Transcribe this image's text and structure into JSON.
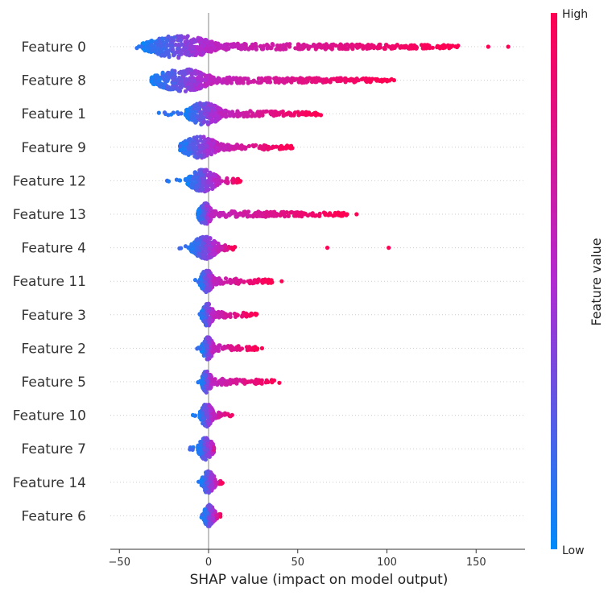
{
  "chart_data": {
    "type": "scatter",
    "subtype": "shap-beeswarm",
    "xlabel": "SHAP value (impact on model output)",
    "xlim": [
      -55,
      178
    ],
    "x_ticks": [
      -50,
      0,
      50,
      100,
      150
    ],
    "x_tick_labels": [
      "−50",
      "0",
      "50",
      "100",
      "150"
    ],
    "zero_line": 0,
    "colorbar": {
      "title": "Feature value",
      "high_label": "High",
      "low_label": "Low",
      "low_color": "#008bfb",
      "mid_color": "#b22ad1",
      "high_color": "#ff0052"
    },
    "features": [
      {
        "name": "Feature 0",
        "min": -44,
        "max": 168,
        "dense_min": -37,
        "dense_max": 5,
        "tail_end": 140,
        "low_side": "left"
      },
      {
        "name": "Feature 8",
        "min": -32,
        "max": 104,
        "dense_min": -32,
        "dense_max": 3,
        "tail_end": 103,
        "low_side": "left"
      },
      {
        "name": "Feature 1",
        "min": -28,
        "max": 63,
        "dense_min": -13,
        "dense_max": 8,
        "tail_end": 63,
        "low_side": "left"
      },
      {
        "name": "Feature 9",
        "min": -16,
        "max": 47,
        "dense_min": -16,
        "dense_max": 6,
        "tail_end": 47,
        "low_side": "left"
      },
      {
        "name": "Feature 12",
        "min": -26,
        "max": 18,
        "dense_min": -12,
        "dense_max": 6,
        "tail_end": 18,
        "low_side": "left"
      },
      {
        "name": "Feature 13",
        "min": -6,
        "max": 83,
        "dense_min": -6,
        "dense_max": 2,
        "tail_end": 78,
        "low_side": "left"
      },
      {
        "name": "Feature 4",
        "min": -18,
        "max": 101,
        "dense_min": -10,
        "dense_max": 6,
        "tail_end": 15,
        "low_side": "left"
      },
      {
        "name": "Feature 11",
        "min": -8,
        "max": 41,
        "dense_min": -5,
        "dense_max": 3,
        "tail_end": 36,
        "low_side": "left"
      },
      {
        "name": "Feature 3",
        "min": -5,
        "max": 27,
        "dense_min": -4,
        "dense_max": 3,
        "tail_end": 27,
        "low_side": "left"
      },
      {
        "name": "Feature 2",
        "min": -10,
        "max": 30,
        "dense_min": -4,
        "dense_max": 3,
        "tail_end": 28,
        "low_side": "left"
      },
      {
        "name": "Feature 5",
        "min": -6,
        "max": 40,
        "dense_min": -4,
        "dense_max": 2,
        "tail_end": 40,
        "low_side": "left"
      },
      {
        "name": "Feature 10",
        "min": -10,
        "max": 15,
        "dense_min": -5,
        "dense_max": 3,
        "tail_end": 15,
        "low_side": "left"
      },
      {
        "name": "Feature 7",
        "min": -14,
        "max": 3,
        "dense_min": -6,
        "dense_max": 3,
        "tail_end": 3,
        "low_side": "left"
      },
      {
        "name": "Feature 14",
        "min": -6,
        "max": 8,
        "dense_min": -4,
        "dense_max": 4,
        "tail_end": 8,
        "low_side": "left"
      },
      {
        "name": "Feature 6",
        "min": -4,
        "max": 7,
        "dense_min": -3,
        "dense_max": 4,
        "tail_end": 7,
        "low_side": "left"
      }
    ]
  }
}
